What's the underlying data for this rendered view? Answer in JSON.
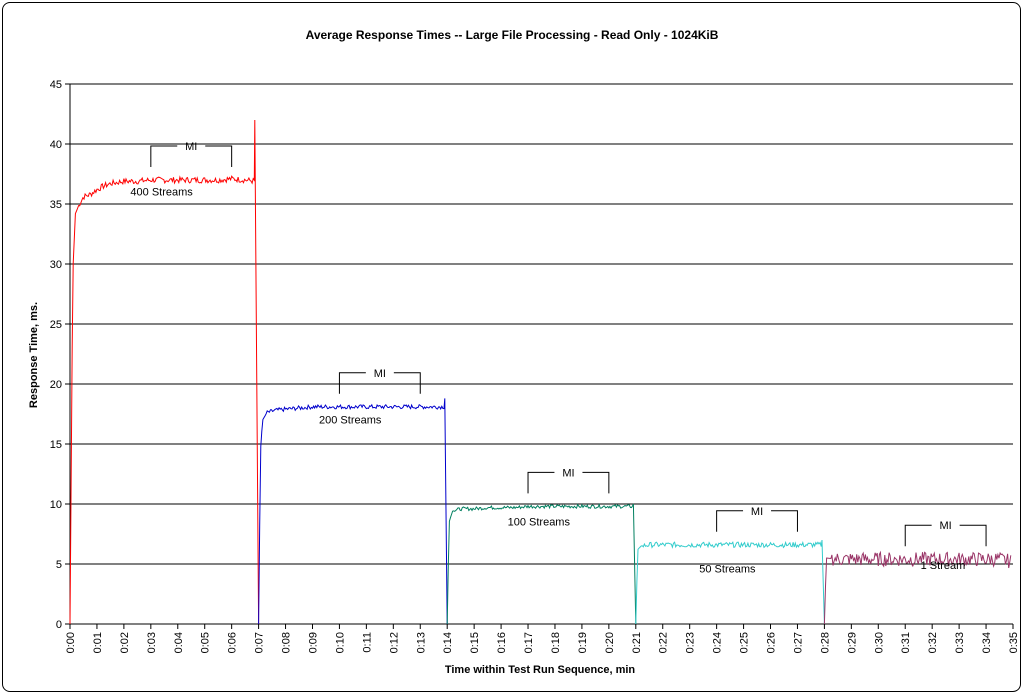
{
  "chart_data": {
    "type": "line",
    "title": "Average Response Times -- Large File Processing - Read Only - 1024KiB",
    "xlabel": "Time within Test Run Sequence, min",
    "ylabel": "Response Time, ms.",
    "ylim": [
      0,
      45
    ],
    "yticks": [
      0,
      5,
      10,
      15,
      20,
      25,
      30,
      35,
      40,
      45
    ],
    "xlim": [
      0,
      35
    ],
    "xticks": [
      "0:00",
      "0:01",
      "0:02",
      "0:03",
      "0:04",
      "0:05",
      "0:06",
      "0:07",
      "0:08",
      "0:09",
      "0:10",
      "0:11",
      "0:12",
      "0:13",
      "0:14",
      "0:15",
      "0:16",
      "0:17",
      "0:18",
      "0:19",
      "0:20",
      "0:21",
      "0:22",
      "0:23",
      "0:24",
      "0:25",
      "0:26",
      "0:27",
      "0:28",
      "0:29",
      "0:30",
      "0:31",
      "0:32",
      "0:33",
      "0:34",
      "0:35"
    ],
    "grid": "horizontal",
    "series": [
      {
        "color": "#ff0000",
        "label": "400 Streams",
        "start": 0.0,
        "end": 6.85,
        "peak": 42.0,
        "points": [
          [
            0.0,
            0
          ],
          [
            0.1,
            29
          ],
          [
            0.2,
            34.2
          ],
          [
            0.35,
            35
          ],
          [
            0.5,
            35.6
          ],
          [
            0.75,
            35.8
          ],
          [
            1.0,
            36.2
          ],
          [
            1.25,
            36.5
          ],
          [
            1.5,
            36.7
          ],
          [
            1.75,
            36.8
          ],
          [
            2.0,
            36.9
          ],
          [
            2.5,
            36.9
          ],
          [
            3.0,
            37.0
          ],
          [
            3.5,
            37.0
          ],
          [
            4.0,
            37.0
          ],
          [
            4.5,
            37.0
          ],
          [
            5.0,
            37.0
          ],
          [
            5.5,
            37.0
          ],
          [
            6.0,
            37.1
          ],
          [
            6.5,
            37.0
          ],
          [
            6.85,
            36.9
          ]
        ],
        "mi": {
          "start": 3.0,
          "end": 6.0
        }
      },
      {
        "color": "#0000cc",
        "label": "200 Streams",
        "start": 7.0,
        "end": 13.9,
        "peak": 18.8,
        "points": [
          [
            7.0,
            0
          ],
          [
            7.07,
            14.5
          ],
          [
            7.15,
            17.0
          ],
          [
            7.3,
            17.6
          ],
          [
            7.6,
            17.8
          ],
          [
            8.0,
            17.9
          ],
          [
            8.5,
            18.0
          ],
          [
            9.0,
            18.1
          ],
          [
            9.5,
            18.1
          ],
          [
            10.0,
            18.1
          ],
          [
            10.5,
            18.1
          ],
          [
            11.0,
            18.1
          ],
          [
            11.5,
            18.1
          ],
          [
            12.0,
            18.1
          ],
          [
            12.5,
            18.1
          ],
          [
            13.0,
            18.1
          ],
          [
            13.5,
            18.1
          ],
          [
            13.9,
            18.1
          ]
        ],
        "mi": {
          "start": 10.0,
          "end": 13.0
        }
      },
      {
        "color": "#007f5f",
        "label": "100 Streams",
        "start": 14.0,
        "end": 20.9,
        "peak": 10.0,
        "points": [
          [
            14.0,
            0
          ],
          [
            14.07,
            8.5
          ],
          [
            14.2,
            9.4
          ],
          [
            14.5,
            9.6
          ],
          [
            15.0,
            9.6
          ],
          [
            15.5,
            9.7
          ],
          [
            16.0,
            9.7
          ],
          [
            16.5,
            9.7
          ],
          [
            17.0,
            9.8
          ],
          [
            17.5,
            9.8
          ],
          [
            18.0,
            9.8
          ],
          [
            18.5,
            9.8
          ],
          [
            19.0,
            9.8
          ],
          [
            19.5,
            9.8
          ],
          [
            20.0,
            9.8
          ],
          [
            20.5,
            9.8
          ],
          [
            20.9,
            9.8
          ]
        ],
        "mi": {
          "start": 17.0,
          "end": 20.0
        }
      },
      {
        "color": "#33cccc",
        "label": "50 Streams",
        "start": 21.0,
        "end": 27.9,
        "peak": 7.0,
        "points": [
          [
            21.0,
            0
          ],
          [
            21.07,
            6.2
          ],
          [
            21.2,
            6.5
          ],
          [
            21.5,
            6.6
          ],
          [
            22.0,
            6.6
          ],
          [
            22.5,
            6.6
          ],
          [
            23.0,
            6.6
          ],
          [
            23.5,
            6.6
          ],
          [
            24.0,
            6.6
          ],
          [
            24.5,
            6.6
          ],
          [
            25.0,
            6.6
          ],
          [
            25.5,
            6.6
          ],
          [
            26.0,
            6.6
          ],
          [
            26.5,
            6.6
          ],
          [
            27.0,
            6.6
          ],
          [
            27.5,
            6.6
          ],
          [
            27.9,
            6.6
          ]
        ],
        "mi": {
          "start": 24.0,
          "end": 27.0
        }
      },
      {
        "color": "#993366",
        "label": "1 Stream",
        "start": 28.0,
        "end": 34.95,
        "peak": 6.8,
        "points": [
          [
            28.0,
            0
          ],
          [
            28.07,
            5.5
          ],
          [
            28.5,
            5.4
          ],
          [
            29.0,
            5.4
          ],
          [
            29.5,
            5.4
          ],
          [
            30.0,
            5.4
          ],
          [
            30.5,
            5.4
          ],
          [
            31.0,
            5.4
          ],
          [
            31.5,
            5.4
          ],
          [
            32.0,
            5.4
          ],
          [
            32.5,
            5.4
          ],
          [
            33.0,
            5.4
          ],
          [
            33.5,
            5.4
          ],
          [
            34.0,
            5.4
          ],
          [
            34.5,
            5.4
          ],
          [
            34.95,
            5.2
          ],
          [
            35.0,
            0
          ]
        ],
        "mi": {
          "start": 31.0,
          "end": 34.0
        }
      }
    ],
    "annotations": [
      {
        "text": "400 Streams",
        "x": 3.4,
        "y": 35.7
      },
      {
        "text": "200 Streams",
        "x": 10.4,
        "y": 16.7
      },
      {
        "text": "100 Streams",
        "x": 17.4,
        "y": 8.2
      },
      {
        "text": "50 Streams",
        "x": 24.4,
        "y": 4.3
      },
      {
        "text": "1 Stream",
        "x": 32.4,
        "y": 4.6
      }
    ],
    "mi_label": "MI"
  }
}
